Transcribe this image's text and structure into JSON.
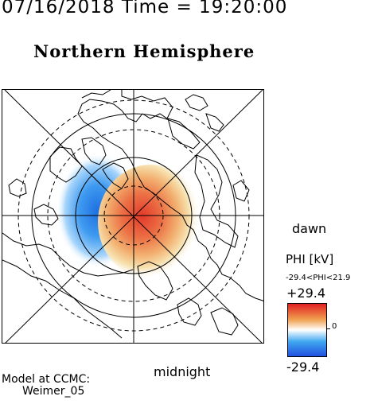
{
  "header": {
    "timestamp": "07/16/2018 Time = 19:20:00",
    "title": "Northern Hemisphere"
  },
  "map": {
    "local_time_labels": {
      "bottom": "midnight",
      "right": "dawn"
    },
    "potential_pattern": {
      "negative_cell": "dusk side",
      "positive_cell": "dawn side"
    }
  },
  "colorbar": {
    "title": "PHI [kV]",
    "range_text": "-29.4<PHI<21.9",
    "max_label": "+29.4",
    "min_label": "-29.4",
    "zero_label": "0",
    "colors": {
      "max": "#e02020",
      "upper": "#f0a050",
      "zero": "#ffffff",
      "lower": "#40a8f0",
      "min": "#2050e0"
    }
  },
  "credit": {
    "line1": "Model at CCMC:",
    "line2": "Weimer_05"
  }
}
